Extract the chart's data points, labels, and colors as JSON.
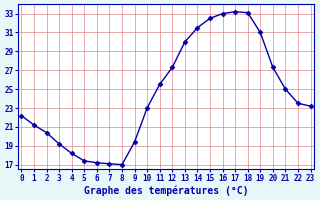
{
  "hours": [
    0,
    1,
    2,
    3,
    4,
    5,
    6,
    7,
    8,
    9,
    10,
    11,
    12,
    13,
    14,
    15,
    16,
    17,
    18,
    19,
    20,
    21,
    22,
    23
  ],
  "temps": [
    22.2,
    21.2,
    20.4,
    19.2,
    18.2,
    17.4,
    17.2,
    17.1,
    17.0,
    19.4,
    23.0,
    25.5,
    27.3,
    30.0,
    31.5,
    32.5,
    33.0,
    33.2,
    33.1,
    31.0,
    27.3,
    25.0,
    23.5,
    23.2
  ],
  "line_color": "#0000aa",
  "bg_color": "#e8f8f8",
  "plot_bg": "#ffffff",
  "grid_color": "#dd8888",
  "xlabel": "Graphe des températures (°C)",
  "ylim": [
    16.5,
    34.0
  ],
  "yticks": [
    17,
    19,
    21,
    23,
    25,
    27,
    29,
    31,
    33
  ],
  "xticks": [
    0,
    1,
    2,
    3,
    4,
    5,
    6,
    7,
    8,
    9,
    10,
    11,
    12,
    13,
    14,
    15,
    16,
    17,
    18,
    19,
    20,
    21,
    22,
    23
  ],
  "xlim": [
    -0.3,
    23.3
  ],
  "marker": "D",
  "markersize": 2.5,
  "linewidth": 1.0,
  "xlabel_fontsize": 7.0,
  "tick_fontsize": 5.5
}
